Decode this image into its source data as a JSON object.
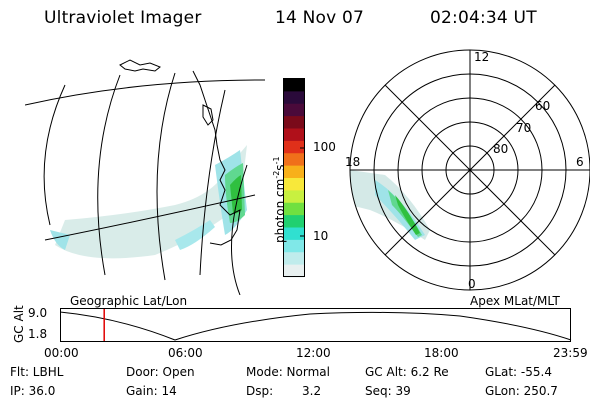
{
  "header": {
    "instrument": "Ultraviolet Imager",
    "date": "14 Nov 07",
    "time": "02:04:34 UT"
  },
  "colorbar": {
    "label": "photon cm",
    "sup1": "-2",
    "mid": "s",
    "sup2": "-1",
    "ticks": [
      "100",
      "10"
    ],
    "colors": [
      "#000000",
      "#2a0a3a",
      "#4a0a3a",
      "#7a0a1a",
      "#b0101a",
      "#e0301a",
      "#f0701a",
      "#f8b01a",
      "#f8e83a",
      "#c8f040",
      "#70e040",
      "#20d070",
      "#30e0d0",
      "#80e8e8",
      "#c0ecec",
      "#e8f0f0"
    ]
  },
  "map_left": {
    "caption": "Geographic Lat/Lon"
  },
  "polar": {
    "caption": "Apex MLat/MLT",
    "mlt_labels": [
      "12",
      "6",
      "18",
      "0"
    ],
    "lat_labels": [
      "60",
      "70",
      "80"
    ]
  },
  "altitude_plot": {
    "ylabel": "GC Alt",
    "yticks": [
      "9.0",
      "1.8"
    ],
    "xticks": [
      "00:00",
      "06:00",
      "12:00",
      "18:00",
      "23:59"
    ],
    "current_time_hours": 2.08
  },
  "status": {
    "flt": "Flt: LBHL",
    "ip": "IP: 36.0",
    "door": "Door: Open",
    "gain": "Gain: 14",
    "mode": "Mode: Normal",
    "dsp_label": "Dsp:",
    "dsp_value": "3.2",
    "gcalt": "GC Alt: 6.2 Re",
    "seq": "Seq: 39",
    "glat": "GLat: -55.4",
    "glon": "GLon: 250.7"
  }
}
